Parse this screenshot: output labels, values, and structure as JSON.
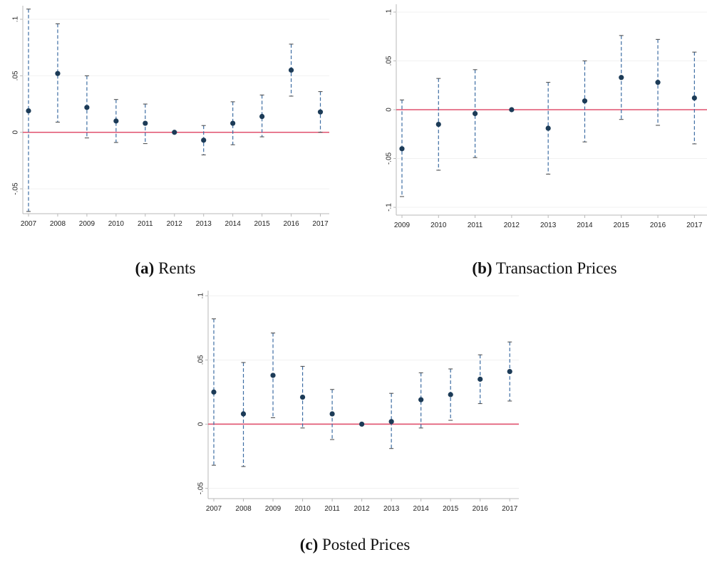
{
  "colors": {
    "point": "#1c3b57",
    "ci_line": "#3d6da3",
    "zero_line": "#e0506e",
    "axis": "#b8b8b8",
    "grid": "#f1f1f1",
    "text": "#222222"
  },
  "captions": [
    {
      "letter": "(a)",
      "text": "Rents"
    },
    {
      "letter": "(b)",
      "text": "Transaction Prices"
    },
    {
      "letter": "(c)",
      "text": "Posted Prices"
    }
  ],
  "chart_data": [
    {
      "type": "scatter",
      "panel": "a",
      "caption": "Rents",
      "x": [
        "2007",
        "2008",
        "2009",
        "2010",
        "2011",
        "2012",
        "2013",
        "2014",
        "2015",
        "2016",
        "2017"
      ],
      "y": [
        0.019,
        0.052,
        0.022,
        0.01,
        0.008,
        0.0,
        -0.007,
        0.008,
        0.014,
        0.055,
        0.018
      ],
      "ci_low": [
        -0.07,
        0.009,
        -0.005,
        -0.009,
        -0.01,
        0.0,
        -0.02,
        -0.011,
        -0.004,
        0.032,
        0.0
      ],
      "ci_high": [
        0.109,
        0.096,
        0.05,
        0.029,
        0.025,
        0.0,
        0.006,
        0.027,
        0.033,
        0.078,
        0.036
      ],
      "ylim": [
        -0.072,
        0.112
      ],
      "yticks": [
        -0.05,
        0,
        0.05,
        0.1
      ],
      "ytick_labels": [
        "-.05",
        "0",
        ".05",
        ".1"
      ],
      "reference_line": 0,
      "grid": true
    },
    {
      "type": "scatter",
      "panel": "b",
      "caption": "Transaction Prices",
      "x": [
        "2009",
        "2010",
        "2011",
        "2012",
        "2013",
        "2014",
        "2015",
        "2016",
        "2017"
      ],
      "y": [
        -0.04,
        -0.015,
        -0.004,
        0.0,
        -0.019,
        0.009,
        0.033,
        0.028,
        0.012
      ],
      "ci_low": [
        -0.089,
        -0.062,
        -0.049,
        0.0,
        -0.066,
        -0.033,
        -0.01,
        -0.016,
        -0.035
      ],
      "ci_high": [
        0.01,
        0.032,
        0.041,
        0.0,
        0.028,
        0.05,
        0.076,
        0.072,
        0.059
      ],
      "ylim": [
        -0.108,
        0.108
      ],
      "yticks": [
        -0.1,
        -0.05,
        0,
        0.05,
        0.1
      ],
      "ytick_labels": [
        "-.1",
        "-.05",
        "0",
        ".05",
        ".1"
      ],
      "reference_line": 0,
      "grid": true
    },
    {
      "type": "scatter",
      "panel": "c",
      "caption": "Posted Prices",
      "x": [
        "2007",
        "2008",
        "2009",
        "2010",
        "2011",
        "2012",
        "2013",
        "2014",
        "2015",
        "2016",
        "2017"
      ],
      "y": [
        0.025,
        0.008,
        0.038,
        0.021,
        0.008,
        0.0,
        0.002,
        0.019,
        0.023,
        0.035,
        0.041
      ],
      "ci_low": [
        -0.032,
        -0.033,
        0.005,
        -0.003,
        -0.012,
        0.0,
        -0.019,
        -0.003,
        0.003,
        0.016,
        0.018
      ],
      "ci_high": [
        0.082,
        0.048,
        0.071,
        0.045,
        0.027,
        0.0,
        0.024,
        0.04,
        0.043,
        0.054,
        0.064
      ],
      "ylim": [
        -0.058,
        0.104
      ],
      "yticks": [
        -0.05,
        0,
        0.05,
        0.1
      ],
      "ytick_labels": [
        "-.05",
        "0",
        ".05",
        ".1"
      ],
      "reference_line": 0,
      "grid": true
    }
  ]
}
